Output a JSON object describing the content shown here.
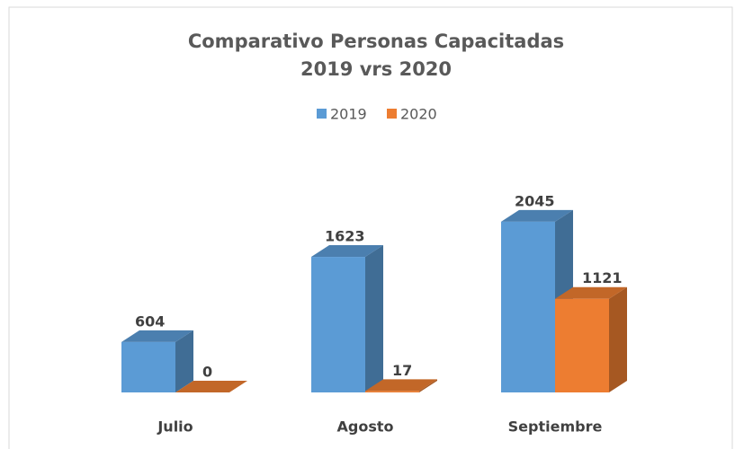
{
  "chart_data": {
    "type": "bar3d",
    "title": "Comparativo Personas Capacitadas",
    "subtitle": "2019 vrs 2020",
    "categories": [
      "Julio",
      "Agosto",
      "Septiembre"
    ],
    "series": [
      {
        "name": "2019",
        "color": "#5b9bd5",
        "values": [
          604,
          1623,
          2045
        ]
      },
      {
        "name": "2020",
        "color": "#ed7d31",
        "values": [
          0,
          17,
          1121
        ]
      }
    ],
    "legend": "top"
  }
}
